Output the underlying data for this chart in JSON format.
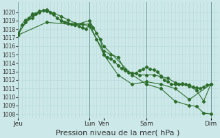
{
  "bg_color": "#cce8e8",
  "grid_minor_color": "#b8d8d8",
  "grid_major_color": "#99bbbb",
  "line_color": "#2d6e2d",
  "xlabel": "Pression niveau de la mer( hPa )",
  "xlabel_fontsize": 8,
  "ylim": [
    1007.5,
    1021.2
  ],
  "yticks": [
    1008,
    1009,
    1010,
    1011,
    1012,
    1013,
    1014,
    1015,
    1016,
    1017,
    1018,
    1019,
    1020
  ],
  "xlim": [
    0,
    28
  ],
  "xtick_labels": [
    "Jeu",
    "Lun",
    "Ven",
    "Sam",
    "Dim"
  ],
  "xtick_positions": [
    0,
    10,
    12,
    18,
    27
  ],
  "vline_positions": [
    0,
    10,
    18,
    27
  ],
  "series1_x": [
    0,
    0.5,
    1,
    1.5,
    2,
    2.5,
    3,
    3.5,
    4,
    4.5,
    5,
    5.5,
    6,
    6.5,
    7,
    7.5,
    8,
    8.5,
    9,
    9.5,
    10,
    10.5,
    11,
    11.5,
    12,
    12.5,
    13,
    13.5,
    14,
    14.5,
    15,
    15.5,
    16,
    16.5,
    17,
    17.5,
    18,
    18.5,
    19,
    19.5,
    20,
    20.5,
    21,
    21.5,
    22,
    22.5,
    23,
    23.5,
    24,
    24.5,
    25,
    25.5,
    26,
    26.5,
    27
  ],
  "series1_y": [
    1017.3,
    1018.5,
    1019.1,
    1019.3,
    1019.6,
    1019.8,
    1020.0,
    1020.2,
    1020.1,
    1020.0,
    1019.7,
    1019.3,
    1019.0,
    1018.8,
    1018.7,
    1018.6,
    1018.5,
    1018.3,
    1018.2,
    1018.0,
    1018.5,
    1018.2,
    1017.5,
    1016.8,
    1015.0,
    1014.7,
    1014.5,
    1014.2,
    1013.7,
    1013.4,
    1013.2,
    1012.9,
    1012.8,
    1012.8,
    1013.1,
    1013.3,
    1013.5,
    1013.3,
    1013.2,
    1013.0,
    1012.5,
    1012.0,
    1011.8,
    1011.5,
    1011.5,
    1011.5,
    1011.6,
    1011.5,
    1011.4,
    1011.2,
    1011.1,
    1011.0,
    1011.2,
    1011.4,
    1011.5
  ],
  "series2_x": [
    0,
    1,
    2,
    3,
    4,
    5,
    6,
    7,
    8,
    9,
    10,
    11,
    12,
    13,
    14,
    15,
    16,
    17,
    18,
    19,
    20,
    21,
    22,
    23,
    24,
    25,
    26,
    27
  ],
  "series2_y": [
    1017.3,
    1018.8,
    1019.3,
    1020.1,
    1020.2,
    1019.9,
    1019.5,
    1019.1,
    1018.7,
    1018.6,
    1018.3,
    1016.8,
    1015.4,
    1015.0,
    1014.7,
    1013.1,
    1012.8,
    1012.6,
    1012.6,
    1012.6,
    1012.4,
    1012.2,
    1011.7,
    1011.5,
    1011.3,
    1010.8,
    1009.5,
    1011.5
  ],
  "series3_x": [
    0,
    2,
    4,
    6,
    8,
    10,
    12,
    14,
    16,
    18,
    20,
    22,
    24,
    27
  ],
  "series3_y": [
    1017.5,
    1019.8,
    1020.3,
    1019.0,
    1018.5,
    1018.6,
    1015.0,
    1012.6,
    1011.5,
    1011.8,
    1011.5,
    1011.0,
    1009.7,
    1011.5
  ],
  "series4_x": [
    0,
    4,
    8,
    10,
    12,
    16,
    18,
    20,
    22,
    24,
    25,
    26,
    27
  ],
  "series4_y": [
    1017.3,
    1018.8,
    1018.5,
    1019.0,
    1016.0,
    1012.6,
    1011.5,
    1011.0,
    1009.5,
    1009.0,
    1008.9,
    1008.1,
    1008.0
  ]
}
